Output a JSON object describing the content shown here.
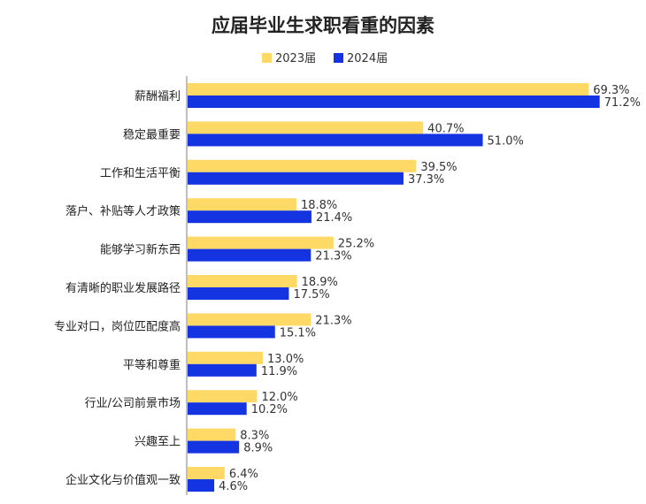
{
  "chart_data": {
    "type": "bar",
    "orientation": "horizontal",
    "title": "应届毕业生求职看重的因素",
    "categories": [
      "薪酬福利",
      "稳定最重要",
      "工作和生活平衡",
      "落户、补贴等人才政策",
      "能够学习新东西",
      "有清晰的职业发展路径",
      "专业对口，岗位匹配度高",
      "平等和尊重",
      "行业/公司前景市场",
      "兴趣至上",
      "企业文化与价值观一致"
    ],
    "series": [
      {
        "name": "2023届",
        "color": "#FFD966",
        "values": [
          69.3,
          40.7,
          39.5,
          18.8,
          25.2,
          18.9,
          21.3,
          13.0,
          12.0,
          8.3,
          6.4
        ],
        "labels": [
          "69.3%",
          "40.7%",
          "39.5%",
          "18.8%",
          "25.2%",
          "18.9%",
          "21.3%",
          "13.0%",
          "12.0%",
          "8.3%",
          "6.4%"
        ]
      },
      {
        "name": "2024届",
        "color": "#1334E0",
        "values": [
          71.2,
          51.0,
          37.3,
          21.4,
          21.3,
          17.5,
          15.1,
          11.9,
          10.2,
          8.9,
          4.6
        ],
        "labels": [
          "71.2%",
          "51.0%",
          "37.3%",
          "21.4%",
          "21.3%",
          "17.5%",
          "15.1%",
          "11.9%",
          "10.2%",
          "8.9%",
          "4.6%"
        ]
      }
    ],
    "unit": "%",
    "xlim": [
      0,
      100
    ],
    "grid": false,
    "legend": "top"
  }
}
